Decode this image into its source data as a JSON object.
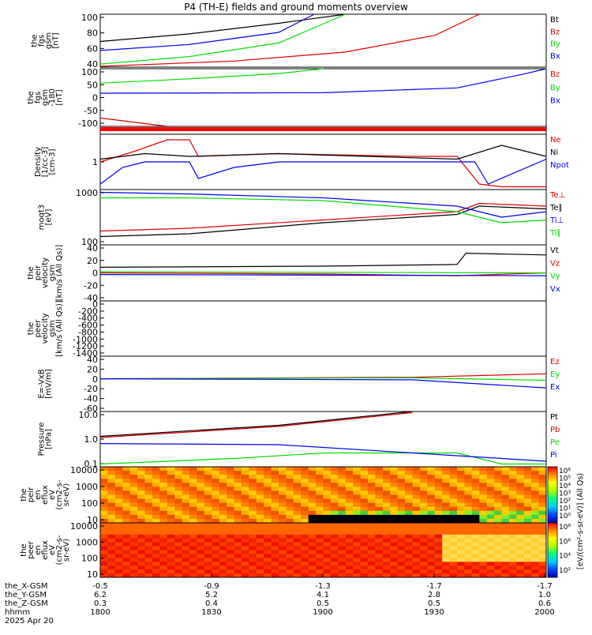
{
  "title": "P4 (TH-E) fields and ground moments overview",
  "colors": {
    "black": "#000000",
    "red": "#dd0000",
    "green": "#00dd00",
    "blue": "#0000ee"
  },
  "chart_data": [
    {
      "type": "line",
      "id": "p1",
      "ylabel": [
        "the",
        "fgs",
        "gsm",
        "[nT]"
      ],
      "yticks": [
        "100",
        "80",
        "60",
        "40"
      ],
      "ylim": [
        30,
        100
      ],
      "series": [
        {
          "name": "Bt",
          "color": "black",
          "x": [
            0,
            0.2,
            0.4,
            0.55
          ],
          "values": [
            64,
            74,
            88,
            100
          ]
        },
        {
          "name": "Bz",
          "color": "red",
          "x": [
            0,
            0.3,
            0.55,
            0.75,
            0.85
          ],
          "values": [
            31,
            38,
            50,
            72,
            100
          ]
        },
        {
          "name": "By",
          "color": "green",
          "x": [
            0,
            0.2,
            0.4,
            0.55
          ],
          "values": [
            34,
            44,
            62,
            100
          ]
        },
        {
          "name": "Bx",
          "color": "blue",
          "x": [
            0,
            0.2,
            0.4,
            0.48
          ],
          "values": [
            52,
            60,
            76,
            100
          ]
        }
      ]
    },
    {
      "type": "line",
      "id": "p2",
      "ylabel": [
        "the",
        "fgs",
        "gsm",
        "-180",
        "[nT]"
      ],
      "yticks": [
        "100",
        "50",
        "0",
        "-50",
        "-100"
      ],
      "ylim": [
        -130,
        110
      ],
      "series": [
        {
          "name": "Bz",
          "color": "red",
          "x": [
            0,
            0.15
          ],
          "values": [
            -95,
            -130
          ]
        },
        {
          "name": "By",
          "color": "green",
          "x": [
            0,
            0.2,
            0.4,
            0.5
          ],
          "values": [
            50,
            68,
            90,
            110
          ]
        },
        {
          "name": "Bx",
          "color": "blue",
          "x": [
            0,
            0.5,
            0.8,
            0.95,
            1
          ],
          "values": [
            8,
            10,
            30,
            88,
            110
          ]
        }
      ]
    },
    {
      "type": "line",
      "id": "p3",
      "ylabel": [],
      "yticks": [],
      "ylim": [
        0,
        1
      ],
      "series": []
    },
    {
      "type": "line",
      "id": "p4",
      "ylabel": [
        "Density",
        "[1/cc-3]",
        "[cm-3]"
      ],
      "yticks": [
        "1"
      ],
      "ylim": [
        0,
        1
      ],
      "series": [
        {
          "name": "Ne",
          "color": "red",
          "x": [
            0,
            0.08,
            0.15,
            0.2,
            0.22,
            0.4,
            0.7,
            0.8,
            0.85,
            0.9,
            1
          ],
          "values": [
            0.5,
            0.7,
            0.9,
            0.9,
            0.6,
            0.65,
            0.6,
            0.6,
            0.1,
            0.05,
            0.05
          ]
        },
        {
          "name": "Ni",
          "color": "black",
          "x": [
            0,
            0.1,
            0.2,
            0.4,
            0.6,
            0.8,
            0.9,
            1
          ],
          "values": [
            0.55,
            0.65,
            0.6,
            0.65,
            0.6,
            0.55,
            0.8,
            0.6
          ]
        },
        {
          "name": "Npot",
          "color": "blue",
          "x": [
            0,
            0.05,
            0.1,
            0.2,
            0.22,
            0.3,
            0.4,
            0.7,
            0.84,
            0.87,
            1
          ],
          "values": [
            0.1,
            0.4,
            0.5,
            0.5,
            0.2,
            0.4,
            0.5,
            0.5,
            0.5,
            0.1,
            0.55
          ]
        }
      ]
    },
    {
      "type": "line",
      "id": "p5",
      "ylabel": [
        "moqt3",
        "[eV]"
      ],
      "yticks": [
        "1000",
        "100"
      ],
      "ylim": [
        0,
        1
      ],
      "series": [
        {
          "name": "Te⊥",
          "color": "red",
          "x": [
            0,
            0.2,
            0.5,
            0.8,
            0.85,
            1
          ],
          "values": [
            0.25,
            0.3,
            0.45,
            0.6,
            0.75,
            0.7
          ]
        },
        {
          "name": "Te∥",
          "color": "black",
          "x": [
            0,
            0.2,
            0.5,
            0.8,
            0.85,
            1
          ],
          "values": [
            0.15,
            0.2,
            0.4,
            0.55,
            0.7,
            0.65
          ]
        },
        {
          "name": "Ti⊥",
          "color": "blue",
          "x": [
            0,
            0.2,
            0.5,
            0.8,
            0.9,
            1
          ],
          "values": [
            0.95,
            0.92,
            0.85,
            0.7,
            0.5,
            0.6
          ]
        },
        {
          "name": "Ti∥",
          "color": "green",
          "x": [
            0,
            0.2,
            0.5,
            0.8,
            0.9,
            1
          ],
          "values": [
            0.85,
            0.85,
            0.8,
            0.6,
            0.4,
            0.45
          ]
        }
      ]
    },
    {
      "type": "line",
      "id": "p6",
      "ylabel": [
        "the",
        "peir",
        "velocity",
        "gsm",
        "[km/s (All Qs)]"
      ],
      "yticks": [
        "40",
        "20",
        "0",
        "-20",
        "-40"
      ],
      "ylim": [
        -50,
        50
      ],
      "series": [
        {
          "name": "Vt",
          "color": "black",
          "x": [
            0,
            0.5,
            0.8,
            0.82,
            1
          ],
          "values": [
            10,
            12,
            15,
            35,
            32
          ]
        },
        {
          "name": "Vz",
          "color": "red",
          "x": [
            0,
            0.5,
            0.8,
            1
          ],
          "values": [
            0,
            -2,
            -5,
            0
          ]
        },
        {
          "name": "Vy",
          "color": "green",
          "x": [
            0,
            1
          ],
          "values": [
            2,
            0
          ]
        },
        {
          "name": "Vx",
          "color": "blue",
          "x": [
            0,
            1
          ],
          "values": [
            -3,
            -5
          ]
        }
      ]
    },
    {
      "type": "line",
      "id": "p7",
      "ylabel": [
        "the",
        "peer",
        "velocity",
        "gsm",
        "[km/s (All Qs)]"
      ],
      "yticks": [
        "0",
        "-200",
        "-400",
        "-600",
        "-800",
        "-1000",
        "-1200",
        "-1400"
      ],
      "ylim": [
        -1450,
        50
      ],
      "series": []
    },
    {
      "type": "line",
      "id": "p8",
      "ylabel": [
        "E=-VxB",
        "[mV/m]"
      ],
      "yticks": [
        "40",
        "20",
        "0",
        "-20",
        "-40",
        "-60"
      ],
      "ylim": [
        -65,
        45
      ],
      "series": [
        {
          "name": "Ez",
          "color": "red",
          "x": [
            0,
            0.7,
            1
          ],
          "values": [
            0,
            3,
            10
          ]
        },
        {
          "name": "Ey",
          "color": "green",
          "x": [
            0,
            0.7,
            1
          ],
          "values": [
            0,
            2,
            -3
          ]
        },
        {
          "name": "Ex",
          "color": "blue",
          "x": [
            0,
            0.7,
            1
          ],
          "values": [
            0,
            -2,
            -18
          ]
        }
      ]
    },
    {
      "type": "line",
      "id": "p9",
      "ylabel": [
        "Pressure",
        "[nPa]"
      ],
      "yticks": [
        "10.0",
        "1.0",
        "0.1"
      ],
      "ylim": [
        0,
        1
      ],
      "series": [
        {
          "name": "Pt",
          "color": "black",
          "x": [
            0,
            0.4,
            0.7
          ],
          "values": [
            0.55,
            0.75,
            1
          ]
        },
        {
          "name": "Pb",
          "color": "red",
          "x": [
            0,
            0.4,
            0.7
          ],
          "values": [
            0.53,
            0.73,
            0.98
          ]
        },
        {
          "name": "Pe",
          "color": "green",
          "x": [
            0,
            0.3,
            0.5,
            0.8,
            0.9,
            1
          ],
          "values": [
            0.05,
            0.15,
            0.25,
            0.25,
            0.05,
            0.05
          ]
        },
        {
          "name": "Pi",
          "color": "blue",
          "x": [
            0,
            0.4,
            0.8,
            1
          ],
          "values": [
            0.42,
            0.4,
            0.2,
            0.1
          ]
        }
      ]
    },
    {
      "type": "heatmap",
      "id": "p10",
      "ylabel": [
        "the",
        "peir",
        "en",
        "eflux",
        "eV",
        "(cm2-s-",
        "sr-eV)"
      ],
      "yticks": [
        "10000",
        "1000",
        "100",
        "10"
      ],
      "colorbar_ticks": [
        "10⁶",
        "10⁵",
        "10⁴",
        "10³",
        "10²",
        "10¹",
        "10⁰"
      ]
    },
    {
      "type": "heatmap",
      "id": "p11",
      "ylabel": [
        "the",
        "peer",
        "en",
        "eflux",
        "eV",
        "(cm2-s-",
        "sr-eV)"
      ],
      "yticks": [
        "10000",
        "1000",
        "100",
        "10"
      ],
      "colorbar_ticks": [
        "10⁸",
        "10⁶",
        "10⁴",
        "10²"
      ]
    }
  ],
  "colorbar_label": "[eV/(cm²-s-sr-eV)] (All Qs)",
  "xticks": {
    "rows": [
      {
        "label": "the_X-GSM",
        "values": [
          "-0.5",
          "-0.9",
          "-1.3",
          "-1.7",
          "-1.7"
        ]
      },
      {
        "label": "the_Y-GSM",
        "values": [
          "6.2",
          "5.2",
          "4.1",
          "2.8",
          "1.0"
        ]
      },
      {
        "label": "the_Z-GSM",
        "values": [
          "0.3",
          "0.4",
          "0.5",
          "0.5",
          "0.6"
        ]
      },
      {
        "label": "hhmm",
        "values": [
          "1800",
          "1830",
          "1900",
          "1930",
          "2000"
        ]
      }
    ],
    "date": "2025 Apr 20",
    "minor_top": [
      "-0.5",
      "-0.9",
      "-1.3",
      "-1.7",
      "-1.7"
    ]
  }
}
